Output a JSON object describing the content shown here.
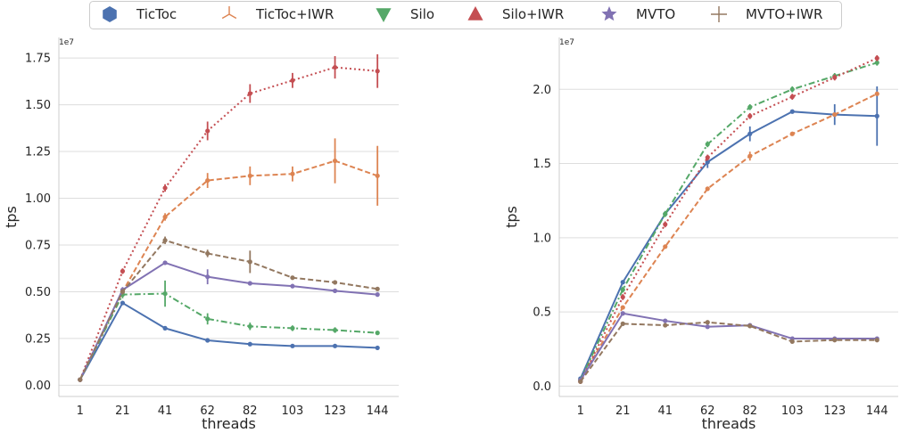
{
  "colors": {
    "TicToc": "#4c72b0",
    "TicToc+IWR": "#dd8452",
    "Silo": "#55a868",
    "Silo+IWR": "#c44e52",
    "MVTO": "#8172b3",
    "MVTO+IWR": "#937860",
    "grid": "#dddddd",
    "spine": "#cccccc"
  },
  "legend": {
    "placement": "top-center",
    "entries": [
      {
        "name": "TicToc",
        "marker": "hexagon",
        "color": "#4c72b0"
      },
      {
        "name": "TicToc+IWR",
        "marker": "tri-up",
        "color": "#dd8452"
      },
      {
        "name": "Silo",
        "marker": "triangle-down",
        "color": "#55a868"
      },
      {
        "name": "Silo+IWR",
        "marker": "triangle-up",
        "color": "#c44e52"
      },
      {
        "name": "MVTO",
        "marker": "star",
        "color": "#8172b3"
      },
      {
        "name": "MVTO+IWR",
        "marker": "plus",
        "color": "#937860"
      }
    ]
  },
  "chart_data": [
    {
      "type": "line",
      "xlabel": "threads",
      "ylabel": "tps",
      "offset_label": "1e7",
      "categories": [
        "1",
        "21",
        "41",
        "62",
        "82",
        "103",
        "123",
        "144"
      ],
      "ylim": [
        -0.06,
        1.86
      ],
      "yticks": [
        0.0,
        0.25,
        0.5,
        0.75,
        1.0,
        1.25,
        1.5,
        1.75
      ],
      "ytick_labels": [
        "0.00",
        "0.25",
        "0.50",
        "0.75",
        "1.00",
        "1.25",
        "1.50",
        "1.75"
      ],
      "grid": "horizontal",
      "series": [
        {
          "name": "TicToc",
          "dash": "solid",
          "values": [
            0.03,
            0.44,
            0.305,
            0.24,
            0.22,
            0.21,
            0.21,
            0.2
          ],
          "err": [
            0.005,
            0.01,
            0.01,
            0.008,
            0.008,
            0.008,
            0.008,
            0.008
          ]
        },
        {
          "name": "TicToc+IWR",
          "dash": "dashed",
          "values": [
            0.03,
            0.5,
            0.9,
            1.095,
            1.12,
            1.13,
            1.2,
            1.12
          ],
          "err": [
            0.005,
            0.02,
            0.02,
            0.04,
            0.05,
            0.04,
            0.12,
            0.16
          ]
        },
        {
          "name": "Silo",
          "dash": "dashdot",
          "values": [
            0.03,
            0.485,
            0.49,
            0.355,
            0.315,
            0.305,
            0.295,
            0.28
          ],
          "err": [
            0.005,
            0.02,
            0.07,
            0.03,
            0.02,
            0.015,
            0.015,
            0.01
          ]
        },
        {
          "name": "Silo+IWR",
          "dash": "dotted",
          "values": [
            0.03,
            0.61,
            1.055,
            1.36,
            1.56,
            1.63,
            1.7,
            1.68
          ],
          "err": [
            0.005,
            0.015,
            0.02,
            0.05,
            0.05,
            0.04,
            0.06,
            0.09
          ]
        },
        {
          "name": "MVTO",
          "dash": "solid",
          "values": [
            0.03,
            0.51,
            0.655,
            0.58,
            0.545,
            0.53,
            0.505,
            0.485
          ],
          "err": [
            0.005,
            0.015,
            0.01,
            0.04,
            0.01,
            0.01,
            0.01,
            0.01
          ]
        },
        {
          "name": "MVTO+IWR",
          "dash": "dashed",
          "values": [
            0.03,
            0.5,
            0.775,
            0.705,
            0.66,
            0.575,
            0.55,
            0.515
          ],
          "err": [
            0.005,
            0.015,
            0.02,
            0.02,
            0.06,
            0.01,
            0.01,
            0.01
          ]
        }
      ]
    },
    {
      "type": "line",
      "xlabel": "threads",
      "ylabel": "tps",
      "offset_label": "1e7",
      "categories": [
        "1",
        "21",
        "41",
        "62",
        "82",
        "103",
        "123",
        "144"
      ],
      "ylim": [
        -0.07,
        2.35
      ],
      "yticks": [
        0.0,
        0.5,
        1.0,
        1.5,
        2.0
      ],
      "ytick_labels": [
        "0.0",
        "0.5",
        "1.0",
        "1.5",
        "2.0"
      ],
      "grid": "horizontal",
      "series": [
        {
          "name": "TicToc",
          "dash": "solid",
          "values": [
            0.05,
            0.7,
            1.16,
            1.51,
            1.7,
            1.85,
            1.83,
            1.82
          ],
          "err": [
            0.005,
            0.01,
            0.02,
            0.04,
            0.05,
            0.01,
            0.07,
            0.2
          ]
        },
        {
          "name": "TicToc+IWR",
          "dash": "dashed",
          "values": [
            0.04,
            0.53,
            0.94,
            1.33,
            1.55,
            1.7,
            1.83,
            1.97
          ],
          "err": [
            0.005,
            0.01,
            0.01,
            0.01,
            0.03,
            0.01,
            0.01,
            0.01
          ]
        },
        {
          "name": "Silo",
          "dash": "dashdot",
          "values": [
            0.04,
            0.65,
            1.16,
            1.63,
            1.88,
            2.0,
            2.09,
            2.18
          ],
          "err": [
            0.005,
            0.02,
            0.02,
            0.02,
            0.02,
            0.02,
            0.02,
            0.02
          ]
        },
        {
          "name": "Silo+IWR",
          "dash": "dotted",
          "values": [
            0.03,
            0.6,
            1.09,
            1.54,
            1.82,
            1.95,
            2.08,
            2.21
          ],
          "err": [
            0.005,
            0.02,
            0.02,
            0.02,
            0.02,
            0.02,
            0.02,
            0.02
          ]
        },
        {
          "name": "MVTO",
          "dash": "solid",
          "values": [
            0.04,
            0.49,
            0.44,
            0.4,
            0.41,
            0.32,
            0.32,
            0.32
          ],
          "err": [
            0.005,
            0.01,
            0.01,
            0.01,
            0.01,
            0.01,
            0.01,
            0.01
          ]
        },
        {
          "name": "MVTO+IWR",
          "dash": "dashed",
          "values": [
            0.03,
            0.42,
            0.41,
            0.43,
            0.405,
            0.3,
            0.31,
            0.31
          ],
          "err": [
            0.005,
            0.01,
            0.01,
            0.01,
            0.01,
            0.01,
            0.01,
            0.01
          ]
        }
      ]
    }
  ]
}
